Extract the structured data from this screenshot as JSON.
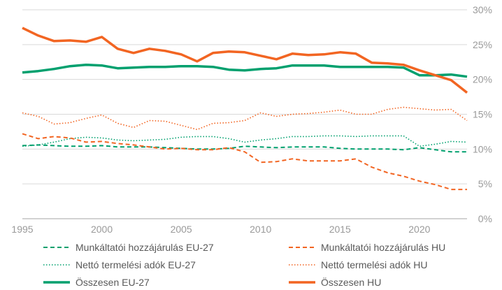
{
  "chart_data": {
    "type": "line",
    "title": "",
    "xlabel": "",
    "ylabel": "",
    "xlim": [
      1995,
      2023
    ],
    "ylim": [
      0,
      30
    ],
    "x_ticks": [
      "1995",
      "2000",
      "2005",
      "2010",
      "2015",
      "2020"
    ],
    "y_ticks": [
      "0%",
      "5%",
      "10%",
      "15%",
      "20%",
      "25%",
      "30%"
    ],
    "grid": "horizontal",
    "legend_position": "bottom",
    "x": [
      1995,
      1996,
      1997,
      1998,
      1999,
      2000,
      2001,
      2002,
      2003,
      2004,
      2005,
      2006,
      2007,
      2008,
      2009,
      2010,
      2011,
      2012,
      2013,
      2014,
      2015,
      2016,
      2017,
      2018,
      2019,
      2020,
      2021,
      2022,
      2023
    ],
    "series": [
      {
        "name": "Munkáltatói hozzájárulás EU-27",
        "color": "#00a06e",
        "style": "dashed",
        "values": [
          10.5,
          10.6,
          10.5,
          10.4,
          10.4,
          10.5,
          10.3,
          10.3,
          10.3,
          10.2,
          10.1,
          10.0,
          10.0,
          10.1,
          10.4,
          10.3,
          10.2,
          10.3,
          10.3,
          10.3,
          10.1,
          10.0,
          10.0,
          10.0,
          9.9,
          10.2,
          9.9,
          9.6,
          9.6
        ]
      },
      {
        "name": "Munkáltatói hozzájárulás HU",
        "color": "#f26522",
        "style": "dashed",
        "values": [
          12.2,
          11.5,
          11.8,
          11.6,
          11.0,
          11.1,
          10.8,
          10.6,
          10.3,
          10.0,
          10.1,
          9.9,
          9.9,
          10.2,
          9.6,
          8.1,
          8.2,
          8.6,
          8.3,
          8.3,
          8.3,
          8.6,
          7.4,
          6.6,
          6.1,
          5.4,
          4.9,
          4.2,
          4.2
        ]
      },
      {
        "name": "Nettó termelési adók EU-27",
        "color": "#00a06e",
        "style": "dotted",
        "values": [
          10.4,
          10.6,
          11.0,
          11.5,
          11.7,
          11.6,
          11.3,
          11.2,
          11.3,
          11.4,
          11.7,
          11.8,
          11.8,
          11.5,
          11.0,
          11.3,
          11.5,
          11.8,
          11.8,
          11.9,
          11.9,
          11.8,
          11.9,
          11.9,
          11.9,
          10.4,
          10.7,
          11.1,
          11.0
        ]
      },
      {
        "name": "Nettó termelési adók HU",
        "color": "#f26522",
        "style": "dotted",
        "values": [
          15.2,
          14.7,
          13.6,
          13.8,
          14.4,
          14.9,
          13.7,
          13.1,
          14.1,
          14.0,
          13.4,
          12.8,
          13.7,
          13.8,
          14.1,
          15.2,
          14.7,
          15.0,
          15.1,
          15.3,
          15.6,
          15.0,
          15.0,
          15.7,
          16.0,
          15.8,
          15.6,
          15.7,
          14.1
        ]
      },
      {
        "name": "Összesen EU-27",
        "color": "#00a06e",
        "style": "solid",
        "values": [
          21.0,
          21.2,
          21.5,
          21.9,
          22.1,
          22.0,
          21.6,
          21.7,
          21.8,
          21.8,
          21.9,
          21.9,
          21.8,
          21.4,
          21.3,
          21.5,
          21.6,
          22.0,
          22.0,
          22.0,
          21.8,
          21.8,
          21.8,
          21.8,
          21.7,
          20.6,
          20.6,
          20.7,
          20.4
        ]
      },
      {
        "name": "Összesen HU",
        "color": "#f26522",
        "style": "solid",
        "values": [
          27.4,
          26.3,
          25.5,
          25.6,
          25.4,
          26.1,
          24.4,
          23.8,
          24.4,
          24.1,
          23.6,
          22.6,
          23.8,
          24.0,
          23.9,
          23.4,
          22.9,
          23.7,
          23.5,
          23.6,
          23.9,
          23.7,
          22.4,
          22.3,
          22.1,
          21.3,
          20.6,
          19.9,
          18.1
        ]
      }
    ]
  }
}
